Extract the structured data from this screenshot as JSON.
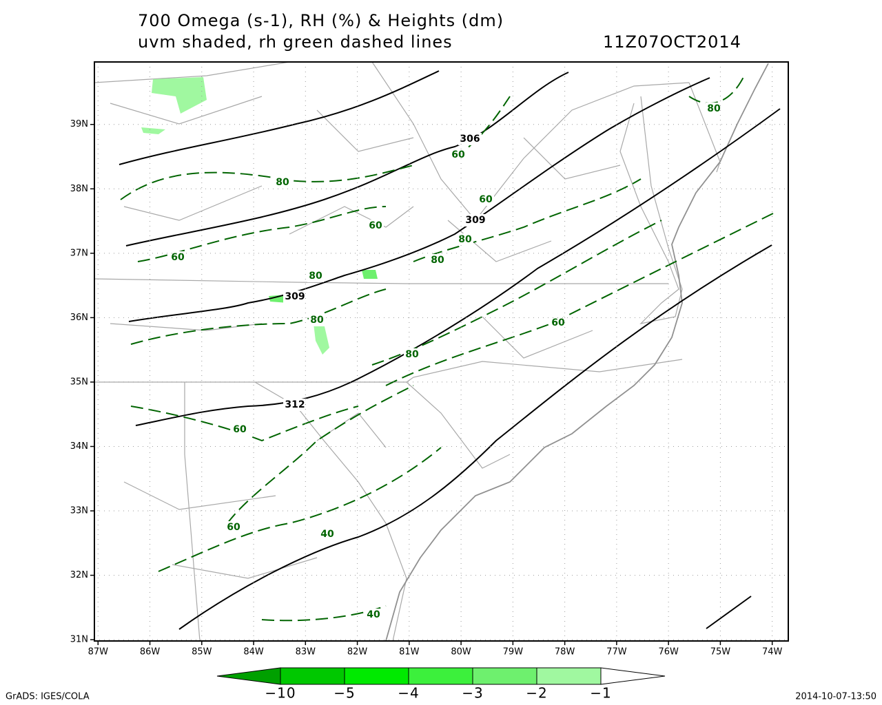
{
  "header": {
    "title": "700 Omega (s-1), RH (%) & Heights (dm)",
    "subtitle": "uvm shaded, rh green dashed lines",
    "time": "11Z07OCT2014"
  },
  "map": {
    "xlim": [
      -87.07,
      -73.69
    ],
    "ylim": [
      30.98,
      39.97
    ],
    "xticks": [
      {
        "value": -87,
        "label": "87W"
      },
      {
        "value": -86,
        "label": "86W"
      },
      {
        "value": -85,
        "label": "85W"
      },
      {
        "value": -84,
        "label": "84W"
      },
      {
        "value": -83,
        "label": "83W"
      },
      {
        "value": -82,
        "label": "82W"
      },
      {
        "value": -81,
        "label": "81W"
      },
      {
        "value": -80,
        "label": "80W"
      },
      {
        "value": -79,
        "label": "79W"
      },
      {
        "value": -78,
        "label": "78W"
      },
      {
        "value": -77,
        "label": "77W"
      },
      {
        "value": -76,
        "label": "76W"
      },
      {
        "value": -75,
        "label": "75W"
      },
      {
        "value": -74,
        "label": "74W"
      }
    ],
    "yticks": [
      {
        "value": 31,
        "label": "31N"
      },
      {
        "value": 32,
        "label": "32N"
      },
      {
        "value": 33,
        "label": "33N"
      },
      {
        "value": 34,
        "label": "34N"
      },
      {
        "value": 35,
        "label": "35N"
      },
      {
        "value": 36,
        "label": "36N"
      },
      {
        "value": 37,
        "label": "37N"
      },
      {
        "value": 38,
        "label": "38N"
      },
      {
        "value": 39,
        "label": "39N"
      }
    ],
    "grid": true,
    "height_contour_color": "#000000",
    "rh_contour_color": "#006400",
    "height_labels": [
      306,
      309,
      309,
      312
    ],
    "rh_labels": [
      80,
      60,
      60,
      60,
      80,
      60,
      80,
      80,
      80,
      60,
      80,
      60,
      60,
      40,
      40,
      80
    ]
  },
  "colorbar": {
    "levels": [
      {
        "value": -10,
        "label": "−10"
      },
      {
        "value": -5,
        "label": "−5"
      },
      {
        "value": -4,
        "label": "−4"
      },
      {
        "value": -3,
        "label": "−3"
      },
      {
        "value": -2,
        "label": "−2"
      },
      {
        "value": -1,
        "label": "−1"
      }
    ],
    "colors": [
      "#00a000",
      "#00c800",
      "#00ea00",
      "#3cf03c",
      "#6ef06e",
      "#a0f8a0",
      "#ffffff"
    ]
  },
  "footer": {
    "left": "GrADS: IGES/COLA",
    "right": "2014-10-07-13:50"
  }
}
